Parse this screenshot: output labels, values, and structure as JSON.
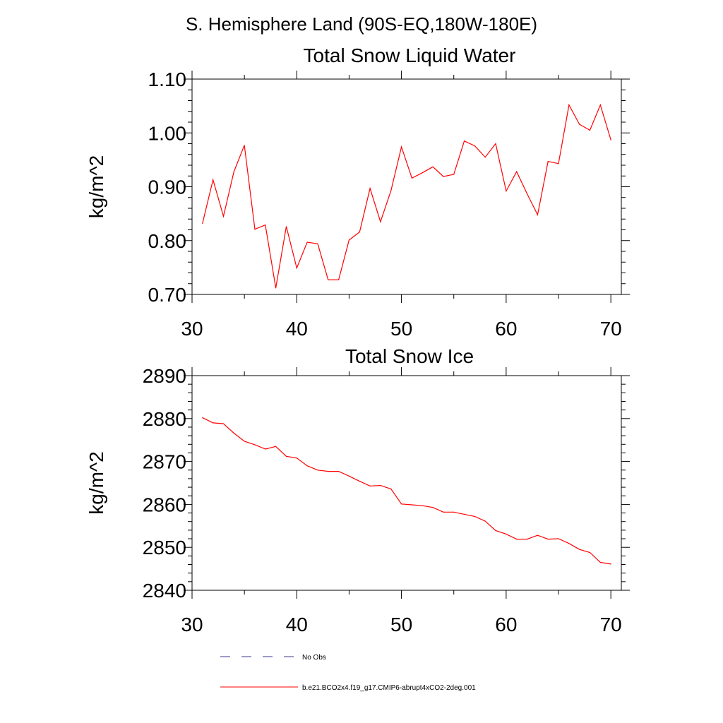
{
  "page_title": "S. Hemisphere Land (90S-EQ,180W-180E)",
  "legend": {
    "obs_label": "No Obs",
    "obs_color": "#3a3a8c",
    "model_label": "b.e21.BCO2x4.f19_g17.CMIP6-abrupt4xCO2-2deg.001",
    "model_color": "#ff0000"
  },
  "chart_data": [
    {
      "type": "line",
      "title": "Total Snow Liquid Water",
      "xlabel": "",
      "ylabel": "kg/m^2",
      "xlim": [
        30,
        71
      ],
      "ylim": [
        0.7,
        1.1
      ],
      "xticks": [
        30,
        40,
        50,
        60,
        70
      ],
      "xtick_labels": [
        "30",
        "40",
        "50",
        "60",
        "70"
      ],
      "yticks": [
        0.7,
        0.8,
        0.9,
        1.0,
        1.1
      ],
      "ytick_labels": [
        "0.70",
        "0.80",
        "0.90",
        "1.00",
        "1.10"
      ],
      "grid": false,
      "series": [
        {
          "name": "b.e21.BCO2x4.f19_g17.CMIP6-abrupt4xCO2-2deg.001",
          "color": "#ff0000",
          "x": [
            31,
            32,
            33,
            34,
            35,
            36,
            37,
            38,
            39,
            40,
            41,
            42,
            43,
            44,
            45,
            46,
            47,
            48,
            49,
            50,
            51,
            52,
            53,
            54,
            55,
            56,
            57,
            58,
            59,
            60,
            61,
            62,
            63,
            64,
            65,
            66,
            67,
            68,
            69,
            70
          ],
          "values": [
            0.832,
            0.913,
            0.845,
            0.928,
            0.977,
            0.821,
            0.829,
            0.712,
            0.826,
            0.749,
            0.797,
            0.794,
            0.727,
            0.727,
            0.801,
            0.816,
            0.897,
            0.835,
            0.893,
            0.974,
            0.916,
            0.926,
            0.937,
            0.919,
            0.923,
            0.985,
            0.976,
            0.955,
            0.98,
            0.892,
            0.928,
            0.887,
            0.848,
            0.947,
            0.943,
            1.052,
            1.016,
            1.005,
            1.052,
            0.987
          ]
        }
      ]
    },
    {
      "type": "line",
      "title": "Total Snow Ice",
      "xlabel": "",
      "ylabel": "kg/m^2",
      "xlim": [
        30,
        71
      ],
      "ylim": [
        2840,
        2890
      ],
      "xticks": [
        30,
        40,
        50,
        60,
        70
      ],
      "xtick_labels": [
        "30",
        "40",
        "50",
        "60",
        "70"
      ],
      "yticks": [
        2840,
        2850,
        2860,
        2870,
        2880,
        2890
      ],
      "ytick_labels": [
        "2840",
        "2850",
        "2860",
        "2870",
        "2880",
        "2890"
      ],
      "grid": false,
      "series": [
        {
          "name": "b.e21.BCO2x4.f19_g17.CMIP6-abrupt4xCO2-2deg.001",
          "color": "#ff0000",
          "x": [
            31,
            32,
            33,
            34,
            35,
            36,
            37,
            38,
            39,
            40,
            41,
            42,
            43,
            44,
            45,
            46,
            47,
            48,
            49,
            50,
            51,
            52,
            53,
            54,
            55,
            56,
            57,
            58,
            59,
            60,
            61,
            62,
            63,
            64,
            65,
            66,
            67,
            68,
            69,
            70
          ],
          "values": [
            2880.2,
            2879.0,
            2878.8,
            2876.6,
            2874.7,
            2873.9,
            2872.9,
            2873.5,
            2871.2,
            2870.8,
            2869.0,
            2868.0,
            2867.7,
            2867.7,
            2866.6,
            2865.4,
            2864.3,
            2864.4,
            2863.6,
            2860.1,
            2859.9,
            2859.7,
            2859.3,
            2858.2,
            2858.2,
            2857.7,
            2857.2,
            2856.1,
            2853.9,
            2853.1,
            2851.9,
            2851.9,
            2852.8,
            2851.9,
            2852.0,
            2850.9,
            2849.5,
            2848.8,
            2846.5,
            2846.1
          ]
        }
      ]
    }
  ]
}
